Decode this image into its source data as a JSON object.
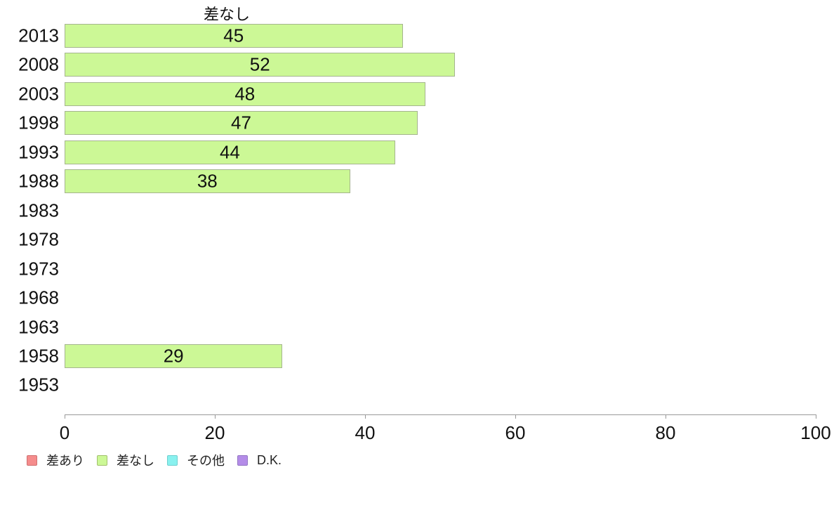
{
  "chart_data": {
    "type": "bar",
    "orientation": "horizontal",
    "title": "差なし",
    "categories": [
      "2013",
      "2008",
      "2003",
      "1998",
      "1993",
      "1988",
      "1983",
      "1978",
      "1973",
      "1968",
      "1963",
      "1958",
      "1953"
    ],
    "values": [
      45,
      52,
      48,
      47,
      44,
      38,
      null,
      null,
      null,
      null,
      null,
      29,
      null
    ],
    "xlabel": "",
    "ylabel": "",
    "xlim": [
      0,
      100
    ],
    "x_ticks": [
      0,
      20,
      40,
      60,
      80,
      100
    ],
    "grid": false,
    "legend_position": "bottom-left",
    "bar_fill": "#ccf896",
    "bar_border": "#a5b58f",
    "value_label_color": "#111111",
    "axis_color": "#999999",
    "legend": [
      {
        "label": "差あり",
        "fill": "#f58c8c",
        "border": "#cf7171"
      },
      {
        "label": "差なし",
        "fill": "#ccf896",
        "border": "#a2c06e"
      },
      {
        "label": "その他",
        "fill": "#89f1ef",
        "border": "#6fcfcf"
      },
      {
        "label": "D.K.",
        "fill": "#b48ce8",
        "border": "#9377c4"
      }
    ]
  }
}
